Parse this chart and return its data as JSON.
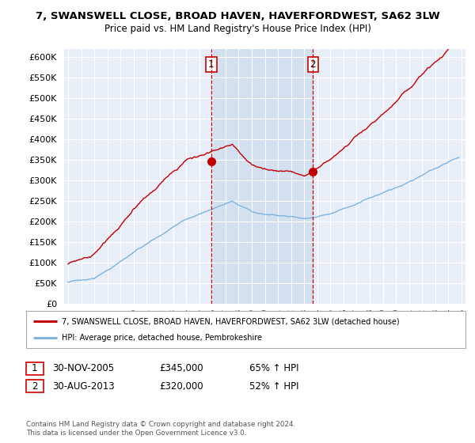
{
  "title_line1": "7, SWANSWELL CLOSE, BROAD HAVEN, HAVERFORDWEST, SA62 3LW",
  "title_line2": "Price paid vs. HM Land Registry's House Price Index (HPI)",
  "ytick_values": [
    0,
    50000,
    100000,
    150000,
    200000,
    250000,
    300000,
    350000,
    400000,
    450000,
    500000,
    550000,
    600000
  ],
  "xlim_start": 1994.7,
  "xlim_end": 2025.3,
  "ylim": [
    0,
    620000
  ],
  "sale1_x": 2005.92,
  "sale1_y": 345000,
  "sale2_x": 2013.67,
  "sale2_y": 320000,
  "hpi_color": "#7fb3e0",
  "price_color": "#c00000",
  "sale_marker_color": "#c00000",
  "legend_label1": "7, SWANSWELL CLOSE, BROAD HAVEN, HAVERFORDWEST, SA62 3LW (detached house)",
  "legend_label2": "HPI: Average price, detached house, Pembrokeshire",
  "annotation1_label": "1",
  "annotation1_date": "30-NOV-2005",
  "annotation1_price": "£345,000",
  "annotation1_hpi": "65% ↑ HPI",
  "annotation2_label": "2",
  "annotation2_date": "30-AUG-2013",
  "annotation2_price": "£320,000",
  "annotation2_hpi": "52% ↑ HPI",
  "footnote": "Contains HM Land Registry data © Crown copyright and database right 2024.\nThis data is licensed under the Open Government Licence v3.0.",
  "background_color": "#ffffff",
  "plot_bg_color": "#e8eef8",
  "grid_color": "#ffffff",
  "shade_color": "#d0dff0"
}
